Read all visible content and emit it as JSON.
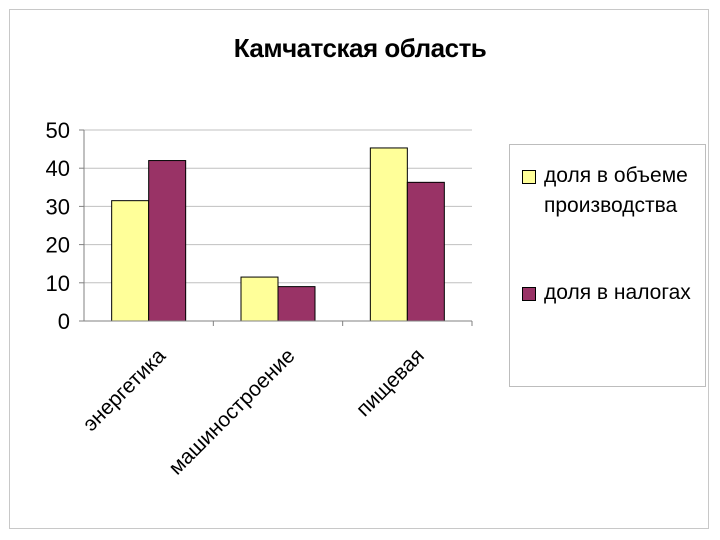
{
  "chart_data": {
    "type": "bar",
    "title": "Камчатская область",
    "categories": [
      "энергетика",
      "машиностроение",
      "пищевая"
    ],
    "series": [
      {
        "name": "доля в объеме производства",
        "values": [
          31.5,
          11.5,
          45.3
        ],
        "color": "#ffff99"
      },
      {
        "name": "доля в налогах",
        "values": [
          42,
          9,
          36.3
        ],
        "color": "#993366"
      }
    ],
    "ylim": [
      0,
      50
    ],
    "yticks": [
      "0",
      "10",
      "20",
      "30",
      "40",
      "50"
    ],
    "grid": true,
    "legend_position": "right"
  }
}
